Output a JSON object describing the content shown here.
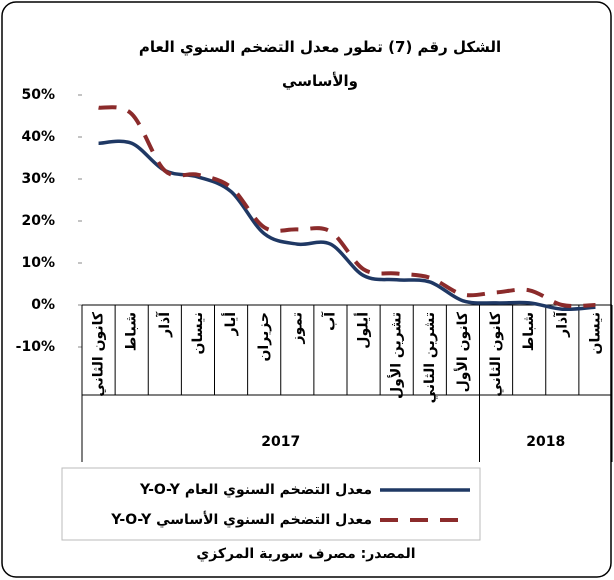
{
  "chart_data": {
    "type": "line",
    "title": "الشكل رقم (7) تطور معدل التضخم السنوي العام والأساسي",
    "categories": [
      "كانون الثاني",
      "شباط",
      "آذار",
      "نيسان",
      "أيار",
      "حزيران",
      "تموز",
      "آب",
      "أيلول",
      "تشرين الأول",
      "تشرين الثاني",
      "كانون الأول",
      "كانون الثاني",
      "شباط",
      "آذار",
      "نيسان"
    ],
    "x_groups": [
      {
        "label": "2017",
        "count": 12
      },
      {
        "label": "2018",
        "count": 4
      }
    ],
    "series": [
      {
        "name": "معدل التضخم السنوي العام Y-O-Y",
        "color": "#1f3864",
        "dash": false,
        "values": [
          38.5,
          38.5,
          32,
          30.5,
          27,
          17,
          14.5,
          14.5,
          7,
          6,
          5.5,
          1,
          0.5,
          0.5,
          -1,
          -0.5
        ]
      },
      {
        "name": "معدل التضخم السنوي الأساسي Y-O-Y",
        "color": "#8b2b2b",
        "dash": true,
        "values": [
          47,
          45.5,
          32,
          31,
          28,
          18.5,
          18,
          17.5,
          8.5,
          7.5,
          6.5,
          2.5,
          3,
          3.5,
          0,
          0
        ]
      }
    ],
    "ylim": [
      -10,
      50
    ],
    "yticks": [
      {
        "value": 50,
        "label": "50%"
      },
      {
        "value": 40,
        "label": "40%"
      },
      {
        "value": 30,
        "label": "30%"
      },
      {
        "value": 20,
        "label": "20%"
      },
      {
        "value": 10,
        "label": "10%"
      },
      {
        "value": 0,
        "label": "0%"
      },
      {
        "value": -10,
        "label": "-10%"
      }
    ],
    "source": "المصدر: مصرف سورية المركزي"
  }
}
